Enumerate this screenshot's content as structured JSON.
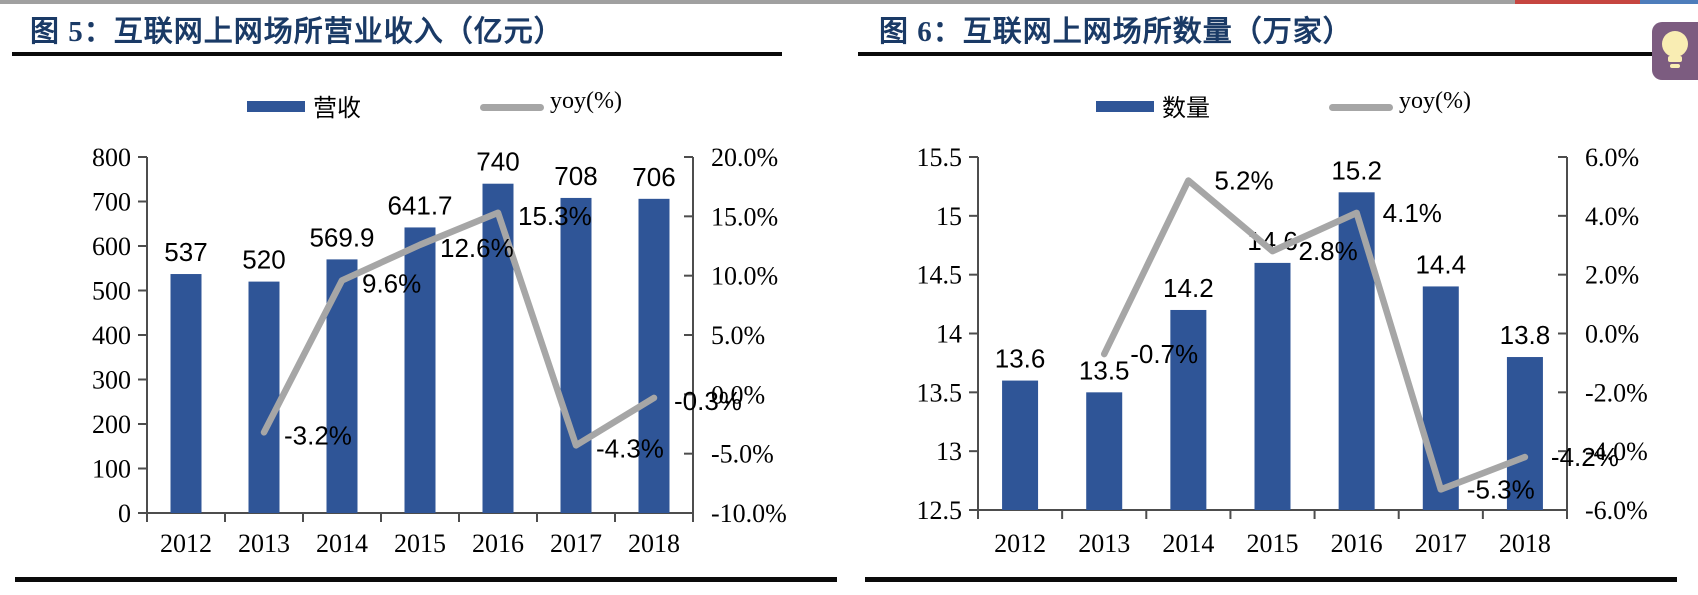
{
  "page": {
    "top_strip": {
      "gray": "#a0a0a0",
      "red": "#c64540",
      "blue": "#4d7dbb"
    },
    "title_color": "#1a3a66",
    "lightbulb_button": {
      "bg": "#7c5c80",
      "bulb": "#f9edb3"
    }
  },
  "chart_data": [
    {
      "type": "bar+line",
      "title": "图 5：互联网上网场所营业收入（亿元）",
      "legend": [
        {
          "label": "营收",
          "series": "bar"
        },
        {
          "label": "yoy(%)",
          "series": "line"
        }
      ],
      "categories": [
        "2012",
        "2013",
        "2014",
        "2015",
        "2016",
        "2017",
        "2018"
      ],
      "bars": {
        "name": "营收",
        "values": [
          537,
          520,
          569.9,
          641.7,
          740,
          708,
          706
        ],
        "labels": [
          "537",
          "520",
          "569.9",
          "641.7",
          "740",
          "708",
          "706"
        ]
      },
      "line": {
        "name": "yoy(%)",
        "values": [
          null,
          -3.2,
          9.6,
          12.6,
          15.3,
          -4.3,
          -0.3
        ],
        "labels": [
          "",
          "-3.2%",
          "9.6%",
          "12.6%",
          "15.3%",
          "-4.3%",
          "-0.3%"
        ]
      },
      "left_axis": {
        "min": 0,
        "max": 800,
        "ticks": [
          "0",
          "100",
          "200",
          "300",
          "400",
          "500",
          "600",
          "700",
          "800"
        ]
      },
      "right_axis": {
        "min": -10,
        "max": 20,
        "ticks": [
          "-10.0%",
          "-5.0%",
          "0.0%",
          "5.0%",
          "10.0%",
          "15.0%",
          "20.0%"
        ]
      },
      "colors": {
        "bar": "#2f5597",
        "line": "#a6a6a6"
      },
      "grid": false,
      "legend_position": "top"
    },
    {
      "type": "bar+line",
      "title": "图 6：互联网上网场所数量（万家）",
      "legend": [
        {
          "label": "数量",
          "series": "bar"
        },
        {
          "label": "yoy(%)",
          "series": "line"
        }
      ],
      "categories": [
        "2012",
        "2013",
        "2014",
        "2015",
        "2016",
        "2017",
        "2018"
      ],
      "bars": {
        "name": "数量",
        "values": [
          13.6,
          13.5,
          14.2,
          14.6,
          15.2,
          14.4,
          13.8
        ],
        "labels": [
          "13.6",
          "13.5",
          "14.2",
          "14.6",
          "15.2",
          "14.4",
          "13.8"
        ]
      },
      "line": {
        "name": "yoy(%)",
        "values": [
          null,
          -0.7,
          5.2,
          2.8,
          4.1,
          -5.3,
          -4.2
        ],
        "labels": [
          "",
          "-0.7%",
          "5.2%",
          "2.8%",
          "4.1%",
          "-5.3%",
          "-4.2%"
        ]
      },
      "left_axis": {
        "min": 12.5,
        "max": 15.5,
        "ticks": [
          "12.5",
          "13",
          "13.5",
          "14",
          "14.5",
          "15",
          "15.5"
        ]
      },
      "right_axis": {
        "min": -6,
        "max": 6,
        "ticks": [
          "-6.0%",
          "-4.0%",
          "-2.0%",
          "0.0%",
          "2.0%",
          "4.0%",
          "6.0%"
        ]
      },
      "colors": {
        "bar": "#2f5597",
        "line": "#a6a6a6"
      },
      "grid": false,
      "legend_position": "top"
    }
  ]
}
